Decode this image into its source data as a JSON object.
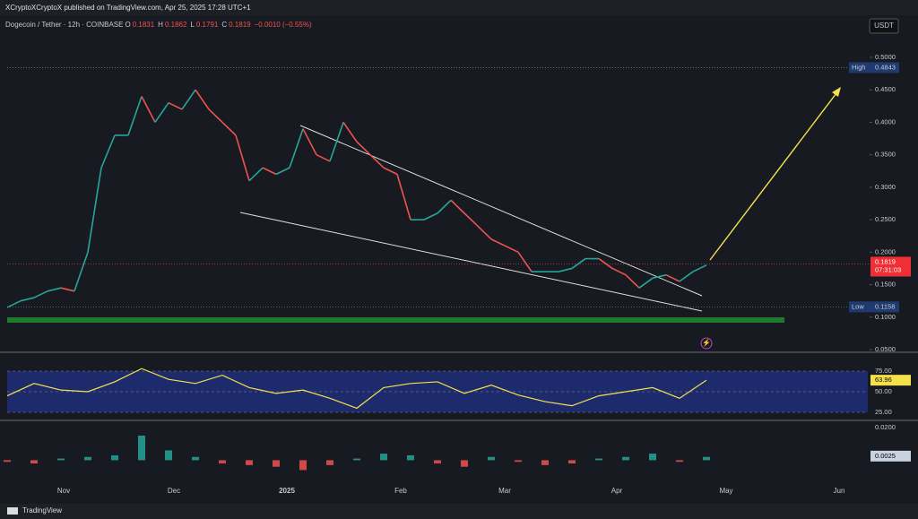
{
  "header": {
    "publisher": "XCryptoXCryptoX published on TradingView.com, Apr 25, 2025 17:28 UTC+1"
  },
  "symbol": {
    "name": "Dogecoin / Tether · 12h · COINBASE",
    "o_label": "O",
    "open": 0.1831,
    "h_label": "H",
    "high": 0.1862,
    "l_label": "L",
    "low": 0.1791,
    "c_label": "C",
    "close": 0.1819,
    "change": "−0.0010 (−0.55%)"
  },
  "currency_button": "USDT",
  "price_axis": {
    "ticks": [
      {
        "value": 0.05,
        "label": "0.0500"
      },
      {
        "value": 0.1,
        "label": "0.1000"
      },
      {
        "value": 0.15,
        "label": "0.1500"
      },
      {
        "value": 0.2,
        "label": "0.2000"
      },
      {
        "value": 0.25,
        "label": "0.2500"
      },
      {
        "value": 0.3,
        "label": "0.3000"
      },
      {
        "value": 0.35,
        "label": "0.3500"
      },
      {
        "value": 0.4,
        "label": "0.4000"
      },
      {
        "value": 0.45,
        "label": "0.4500"
      },
      {
        "value": 0.5,
        "label": "0.5000"
      }
    ]
  },
  "high_marker": {
    "label": "High",
    "value": 0.4843
  },
  "low_marker": {
    "label": "Low",
    "value": 0.1158
  },
  "last_price": {
    "value": 0.1819,
    "countdown": "07:31:03"
  },
  "price_closes": [
    0.115,
    0.125,
    0.13,
    0.14,
    0.145,
    0.14,
    0.2,
    0.33,
    0.38,
    0.38,
    0.44,
    0.4,
    0.43,
    0.42,
    0.45,
    0.42,
    0.4,
    0.38,
    0.31,
    0.33,
    0.32,
    0.33,
    0.39,
    0.35,
    0.34,
    0.4,
    0.37,
    0.35,
    0.33,
    0.32,
    0.25,
    0.25,
    0.26,
    0.28,
    0.26,
    0.24,
    0.22,
    0.21,
    0.2,
    0.17,
    0.17,
    0.17,
    0.175,
    0.19,
    0.19,
    0.175,
    0.165,
    0.145,
    0.16,
    0.165,
    0.155,
    0.17,
    0.18
  ],
  "rsi": {
    "ticks": [
      {
        "value": 75,
        "label": "75.00"
      },
      {
        "value": 50,
        "label": "50.00"
      },
      {
        "value": 25,
        "label": "25.00"
      }
    ],
    "value": 63.96,
    "series": [
      45,
      60,
      52,
      50,
      62,
      78,
      65,
      60,
      70,
      55,
      48,
      52,
      42,
      30,
      55,
      60,
      62,
      48,
      58,
      46,
      38,
      33,
      45,
      50,
      55,
      42,
      64
    ]
  },
  "macd": {
    "ticks": [
      {
        "value": 0.02,
        "label": "0.0200"
      }
    ],
    "value": 0.0025,
    "histogram": [
      -0.001,
      -0.002,
      0.001,
      0.002,
      0.003,
      0.015,
      0.006,
      0.002,
      -0.002,
      -0.003,
      -0.004,
      -0.006,
      -0.003,
      0.001,
      0.004,
      0.003,
      -0.002,
      -0.004,
      0.002,
      -0.001,
      -0.003,
      -0.002,
      0.001,
      0.002,
      0.004,
      -0.001,
      0.002
    ]
  },
  "time_axis": [
    "Nov",
    "Dec",
    "2025",
    "Feb",
    "Mar",
    "Apr",
    "May",
    "Jun"
  ],
  "footer": {
    "brand": "TradingView"
  }
}
